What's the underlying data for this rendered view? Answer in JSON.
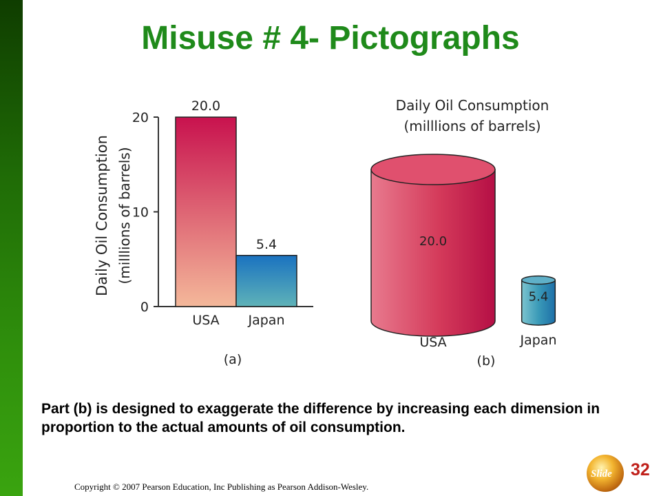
{
  "slide": {
    "title": "Misuse # 4- Pictographs",
    "description": "Part (b) is designed to exaggerate the difference by increasing each dimension in proportion to the actual amounts of oil consumption.",
    "copyright": "Copyright © 2007 Pearson Education, Inc Publishing as Pearson Addison-Wesley.",
    "badge_word": "Slide",
    "badge_number": "32"
  },
  "colors": {
    "title": "#1f8a1a",
    "usa_top": "#c8124e",
    "usa_bottom": "#f4b89a",
    "japan_top": "#1a72c0",
    "japan_bottom": "#5fb3b8",
    "cyl_red": "#d43a5a",
    "cyl_teal": "#3a9ab8"
  },
  "chart_data": [
    {
      "type": "bar",
      "categories": [
        "USA",
        "Japan"
      ],
      "values": [
        20.0,
        5.4
      ],
      "value_labels": [
        "20.0",
        "5.4"
      ],
      "ylabel": "Daily Oil Consumption",
      "ylabel_units": "(milllions of barrels)",
      "yticks": [
        "0",
        "10",
        "20"
      ],
      "ylim": [
        0,
        20
      ],
      "caption": "(a)"
    },
    {
      "type": "pictograph",
      "categories": [
        "USA",
        "Japan"
      ],
      "values": [
        20.0,
        5.4
      ],
      "value_labels": [
        "20.0",
        "5.4"
      ],
      "title": "Daily Oil Consumption",
      "subtitle": "(milllions of barrels)",
      "caption": "(b)"
    }
  ]
}
